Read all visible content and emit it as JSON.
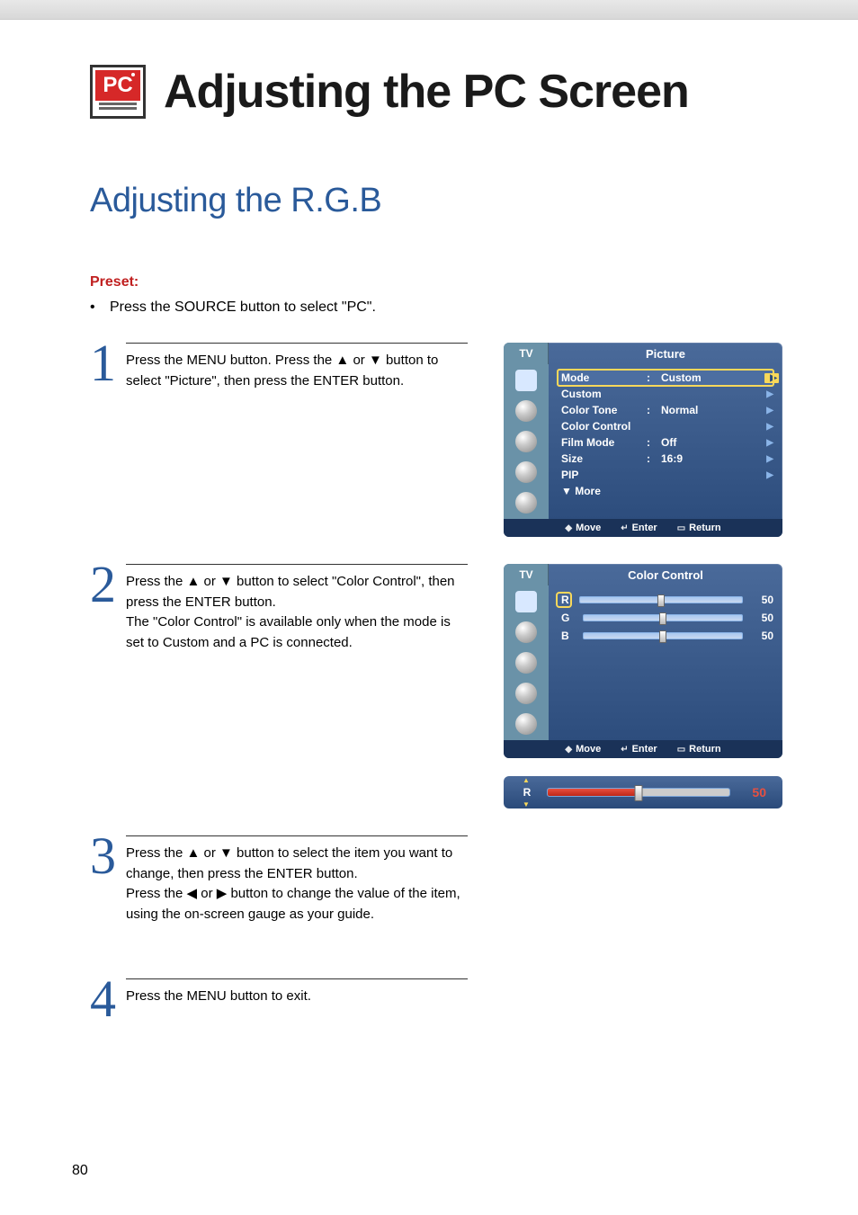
{
  "header": {
    "badge_text": "PC",
    "main_title": "Adjusting the PC Screen",
    "sub_title": "Adjusting the R.G.B"
  },
  "preset": {
    "label": "Preset:",
    "text": "Press the SOURCE button to select \"PC\"."
  },
  "steps": [
    {
      "num": "1",
      "text": "Press the MENU button. Press the ▲ or ▼ button to select \"Picture\", then press the ENTER button."
    },
    {
      "num": "2",
      "text": "Press the ▲ or ▼ button to select \"Color Control\", then press the ENTER button.\nThe \"Color Control\" is available only when the mode is set to Custom and a PC is connected."
    },
    {
      "num": "3",
      "text": "Press the ▲ or ▼ button to select the item you want to change, then press the ENTER button.\nPress the ◀ or ▶ button to change the value of the item, using the on-screen gauge as your guide."
    },
    {
      "num": "4",
      "text": "Press the MENU button to exit."
    }
  ],
  "osd_picture": {
    "tv_label": "TV",
    "title": "Picture",
    "rows": [
      {
        "label": "Mode",
        "value": "Custom",
        "selected": true,
        "arrow_style": "hl"
      },
      {
        "label": "Custom",
        "value": "",
        "selected": false,
        "arrow_style": "blue"
      },
      {
        "label": "Color Tone",
        "value": "Normal",
        "selected": false,
        "arrow_style": "blue"
      },
      {
        "label": "Color Control",
        "value": "",
        "selected": false,
        "arrow_style": "blue"
      },
      {
        "label": "Film Mode",
        "value": "Off",
        "selected": false,
        "arrow_style": "blue"
      },
      {
        "label": "Size",
        "value": "16:9",
        "selected": false,
        "arrow_style": "blue"
      },
      {
        "label": "PIP",
        "value": "",
        "selected": false,
        "arrow_style": "blue"
      },
      {
        "label": "▼ More",
        "value": "",
        "selected": false,
        "arrow_style": "none"
      }
    ],
    "footer": {
      "move": "Move",
      "enter": "Enter",
      "return": "Return"
    },
    "icons": [
      "🖼",
      "🔵",
      "🔘",
      "🌐",
      "↻"
    ]
  },
  "osd_color": {
    "tv_label": "TV",
    "title": "Color Control",
    "channels": [
      {
        "label": "R",
        "value": 50,
        "selected": true
      },
      {
        "label": "G",
        "value": 50,
        "selected": false
      },
      {
        "label": "B",
        "value": 50,
        "selected": false
      }
    ],
    "footer": {
      "move": "Move",
      "enter": "Enter",
      "return": "Return"
    },
    "icons": [
      "🖼",
      "🔵",
      "🔘",
      "🌐",
      "↻"
    ]
  },
  "rbar": {
    "label": "R",
    "value": 50,
    "fill_color": "#d83424",
    "value_color": "#e85040"
  },
  "page_number": "80",
  "style": {
    "osd_bg_top": "#4a6a9a",
    "osd_bg_bottom": "#2a4a7a",
    "highlight": "#f8d85a",
    "title_color": "#2a5a9a"
  }
}
